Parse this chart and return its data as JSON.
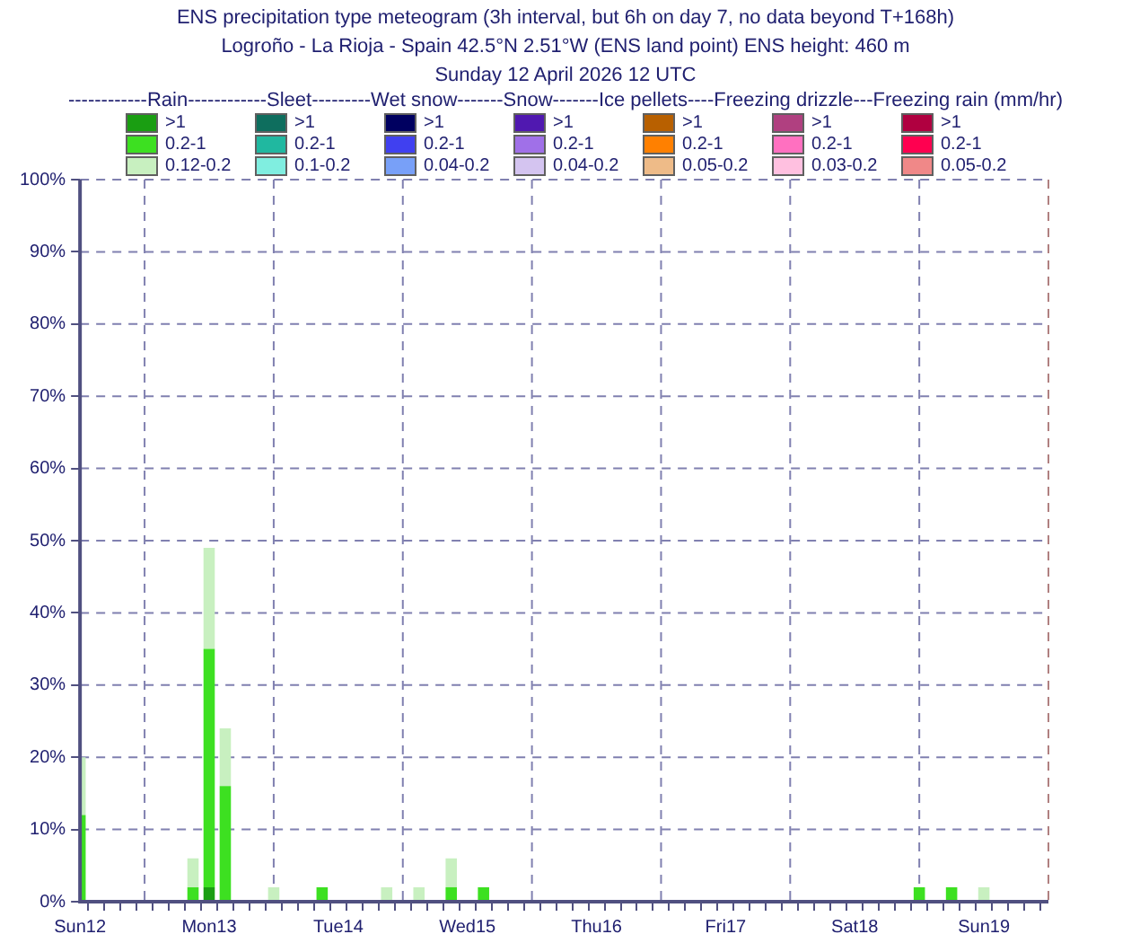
{
  "chart_data": {
    "type": "bar",
    "title": "ENS precipitation type meteogram (3h interval, but 6h on day 7, no data beyond T+168h)",
    "subtitle": "Logroño - La Rioja - Spain 42.5°N 2.51°W (ENS land point) ENS height: 460 m\nSunday 12 April 2026 12 UTC",
    "legend_title": "------------Rain------------Sleet---------Wet snow-------Snow-------Ice pellets----Freezing drizzle---Freezing rain (mm/hr)",
    "stacked": true,
    "legend": "top",
    "grid": true,
    "categories": [
      "Sun12",
      null,
      null,
      null,
      null,
      null,
      null,
      null,
      "Mon13",
      null,
      null,
      null,
      null,
      null,
      null,
      null,
      "Tue14",
      null,
      null,
      null,
      null,
      null,
      null,
      null,
      "Wed15",
      null,
      null,
      null,
      null,
      null,
      null,
      null,
      "Thu16",
      null,
      null,
      null,
      null,
      null,
      null,
      null,
      "Fri17",
      null,
      null,
      null,
      null,
      null,
      null,
      null,
      "Sat18",
      null,
      null,
      null,
      null,
      null,
      null,
      null,
      "Sun19",
      null,
      null,
      null,
      null
    ],
    "ylim": [
      0,
      100
    ],
    "yticks": [
      {
        "value": 0,
        "label": "0%"
      },
      {
        "value": 10,
        "label": "10%"
      },
      {
        "value": 20,
        "label": "20%"
      },
      {
        "value": 30,
        "label": "30%"
      },
      {
        "value": 40,
        "label": "40%"
      },
      {
        "value": 50,
        "label": "50%"
      },
      {
        "value": 60,
        "label": "60%"
      },
      {
        "value": 70,
        "label": "70%"
      },
      {
        "value": 80,
        "label": "80%"
      },
      {
        "value": 90,
        "label": "90%"
      },
      {
        "value": 100,
        "label": "100%"
      }
    ],
    "series": [
      {
        "name": ">1",
        "color": "#1a9e12",
        "values": [
          null,
          null,
          null,
          null,
          null,
          null,
          null,
          null,
          2,
          null,
          null,
          null,
          null,
          null,
          null,
          null,
          null,
          null,
          null,
          null,
          null,
          null,
          null,
          null,
          null,
          null,
          null,
          null,
          null,
          null,
          null,
          null,
          null,
          null,
          null,
          null,
          null,
          null,
          null,
          null,
          null,
          null,
          null,
          null,
          null,
          null,
          null,
          null,
          null,
          null,
          null,
          null,
          null,
          null,
          null,
          null,
          null,
          null,
          null,
          null,
          null
        ]
      },
      {
        "name": "0.2-1",
        "color": "#3de021",
        "values": [
          12,
          null,
          null,
          null,
          null,
          null,
          null,
          2,
          33,
          16,
          null,
          null,
          null,
          null,
          null,
          2,
          null,
          null,
          null,
          null,
          null,
          null,
          null,
          2,
          null,
          2,
          null,
          null,
          null,
          null,
          null,
          null,
          null,
          null,
          null,
          null,
          null,
          null,
          null,
          null,
          null,
          null,
          null,
          null,
          null,
          null,
          null,
          null,
          null,
          null,
          null,
          null,
          2,
          null,
          2,
          null,
          null,
          null,
          null,
          null,
          null
        ]
      },
      {
        "name": "0.12-0.2",
        "color": "#c8f0c0",
        "values": [
          8,
          null,
          null,
          null,
          null,
          null,
          null,
          4,
          14,
          8,
          null,
          null,
          2,
          null,
          null,
          null,
          null,
          null,
          null,
          2,
          null,
          2,
          null,
          4,
          null,
          null,
          null,
          null,
          null,
          null,
          null,
          null,
          null,
          null,
          null,
          null,
          null,
          null,
          null,
          null,
          null,
          null,
          null,
          null,
          null,
          null,
          null,
          null,
          null,
          null,
          null,
          null,
          null,
          null,
          null,
          null,
          2,
          null,
          null,
          null,
          null
        ]
      },
      {
        "name": ">1",
        "color": "#0e6e5e",
        "values": [
          0,
          0,
          0,
          0,
          0,
          0,
          0,
          0,
          0,
          0,
          0,
          0,
          0,
          0,
          0,
          0,
          0,
          0,
          0,
          0,
          0,
          0,
          0,
          0,
          0,
          0,
          0,
          0,
          0,
          0,
          0,
          0,
          0,
          0,
          0,
          0,
          0,
          0,
          0,
          0,
          0,
          0,
          0,
          0,
          0,
          0,
          0,
          0,
          0,
          0,
          0,
          0,
          0,
          0,
          0,
          0,
          0,
          0,
          0,
          0,
          0
        ]
      },
      {
        "name": "0.2-1",
        "color": "#20b8a0",
        "values": [
          0,
          0,
          0,
          0,
          0,
          0,
          0,
          0,
          0,
          0,
          0,
          0,
          0,
          0,
          0,
          0,
          0,
          0,
          0,
          0,
          0,
          0,
          0,
          0,
          0,
          0,
          0,
          0,
          0,
          0,
          0,
          0,
          0,
          0,
          0,
          0,
          0,
          0,
          0,
          0,
          0,
          0,
          0,
          0,
          0,
          0,
          0,
          0,
          0,
          0,
          0,
          0,
          0,
          0,
          0,
          0,
          0,
          0,
          0,
          0,
          0
        ]
      },
      {
        "name": "0.1-0.2",
        "color": "#80eee0",
        "values": [
          0,
          0,
          0,
          0,
          0,
          0,
          0,
          0,
          0,
          0,
          0,
          0,
          0,
          0,
          0,
          0,
          0,
          0,
          0,
          0,
          0,
          0,
          0,
          0,
          0,
          0,
          0,
          0,
          0,
          0,
          0,
          0,
          0,
          0,
          0,
          0,
          0,
          0,
          0,
          0,
          0,
          0,
          0,
          0,
          0,
          0,
          0,
          0,
          0,
          0,
          0,
          0,
          0,
          0,
          0,
          0,
          0,
          0,
          0,
          0,
          0
        ]
      },
      {
        "name": ">1",
        "color": "#000060",
        "values": [
          0,
          0,
          0,
          0,
          0,
          0,
          0,
          0,
          0,
          0,
          0,
          0,
          0,
          0,
          0,
          0,
          0,
          0,
          0,
          0,
          0,
          0,
          0,
          0,
          0,
          0,
          0,
          0,
          0,
          0,
          0,
          0,
          0,
          0,
          0,
          0,
          0,
          0,
          0,
          0,
          0,
          0,
          0,
          0,
          0,
          0,
          0,
          0,
          0,
          0,
          0,
          0,
          0,
          0,
          0,
          0,
          0,
          0,
          0,
          0,
          0
        ]
      },
      {
        "name": "0.2-1",
        "color": "#4040f0",
        "values": [
          0,
          0,
          0,
          0,
          0,
          0,
          0,
          0,
          0,
          0,
          0,
          0,
          0,
          0,
          0,
          0,
          0,
          0,
          0,
          0,
          0,
          0,
          0,
          0,
          0,
          0,
          0,
          0,
          0,
          0,
          0,
          0,
          0,
          0,
          0,
          0,
          0,
          0,
          0,
          0,
          0,
          0,
          0,
          0,
          0,
          0,
          0,
          0,
          0,
          0,
          0,
          0,
          0,
          0,
          0,
          0,
          0,
          0,
          0,
          0,
          0
        ]
      },
      {
        "name": "0.04-0.2",
        "color": "#78a0f8",
        "values": [
          0,
          0,
          0,
          0,
          0,
          0,
          0,
          0,
          0,
          0,
          0,
          0,
          0,
          0,
          0,
          0,
          0,
          0,
          0,
          0,
          0,
          0,
          0,
          0,
          0,
          0,
          0,
          0,
          0,
          0,
          0,
          0,
          0,
          0,
          0,
          0,
          0,
          0,
          0,
          0,
          0,
          0,
          0,
          0,
          0,
          0,
          0,
          0,
          0,
          0,
          0,
          0,
          0,
          0,
          0,
          0,
          0,
          0,
          0,
          0,
          0
        ]
      },
      {
        "name": ">1",
        "color": "#5018b0",
        "values": [
          0,
          0,
          0,
          0,
          0,
          0,
          0,
          0,
          0,
          0,
          0,
          0,
          0,
          0,
          0,
          0,
          0,
          0,
          0,
          0,
          0,
          0,
          0,
          0,
          0,
          0,
          0,
          0,
          0,
          0,
          0,
          0,
          0,
          0,
          0,
          0,
          0,
          0,
          0,
          0,
          0,
          0,
          0,
          0,
          0,
          0,
          0,
          0,
          0,
          0,
          0,
          0,
          0,
          0,
          0,
          0,
          0,
          0,
          0,
          0,
          0
        ]
      },
      {
        "name": "0.2-1",
        "color": "#a070e8",
        "values": [
          0,
          0,
          0,
          0,
          0,
          0,
          0,
          0,
          0,
          0,
          0,
          0,
          0,
          0,
          0,
          0,
          0,
          0,
          0,
          0,
          0,
          0,
          0,
          0,
          0,
          0,
          0,
          0,
          0,
          0,
          0,
          0,
          0,
          0,
          0,
          0,
          0,
          0,
          0,
          0,
          0,
          0,
          0,
          0,
          0,
          0,
          0,
          0,
          0,
          0,
          0,
          0,
          0,
          0,
          0,
          0,
          0,
          0,
          0,
          0,
          0
        ]
      },
      {
        "name": "0.04-0.2",
        "color": "#d4c4f0",
        "values": [
          0,
          0,
          0,
          0,
          0,
          0,
          0,
          0,
          0,
          0,
          0,
          0,
          0,
          0,
          0,
          0,
          0,
          0,
          0,
          0,
          0,
          0,
          0,
          0,
          0,
          0,
          0,
          0,
          0,
          0,
          0,
          0,
          0,
          0,
          0,
          0,
          0,
          0,
          0,
          0,
          0,
          0,
          0,
          0,
          0,
          0,
          0,
          0,
          0,
          0,
          0,
          0,
          0,
          0,
          0,
          0,
          0,
          0,
          0,
          0,
          0
        ]
      },
      {
        "name": ">1",
        "color": "#b86000",
        "values": [
          0,
          0,
          0,
          0,
          0,
          0,
          0,
          0,
          0,
          0,
          0,
          0,
          0,
          0,
          0,
          0,
          0,
          0,
          0,
          0,
          0,
          0,
          0,
          0,
          0,
          0,
          0,
          0,
          0,
          0,
          0,
          0,
          0,
          0,
          0,
          0,
          0,
          0,
          0,
          0,
          0,
          0,
          0,
          0,
          0,
          0,
          0,
          0,
          0,
          0,
          0,
          0,
          0,
          0,
          0,
          0,
          0,
          0,
          0,
          0,
          0
        ]
      },
      {
        "name": "0.2-1",
        "color": "#ff8000",
        "values": [
          0,
          0,
          0,
          0,
          0,
          0,
          0,
          0,
          0,
          0,
          0,
          0,
          0,
          0,
          0,
          0,
          0,
          0,
          0,
          0,
          0,
          0,
          0,
          0,
          0,
          0,
          0,
          0,
          0,
          0,
          0,
          0,
          0,
          0,
          0,
          0,
          0,
          0,
          0,
          0,
          0,
          0,
          0,
          0,
          0,
          0,
          0,
          0,
          0,
          0,
          0,
          0,
          0,
          0,
          0,
          0,
          0,
          0,
          0,
          0,
          0
        ]
      },
      {
        "name": "0.05-0.2",
        "color": "#eebb88",
        "values": [
          0,
          0,
          0,
          0,
          0,
          0,
          0,
          0,
          0,
          0,
          0,
          0,
          0,
          0,
          0,
          0,
          0,
          0,
          0,
          0,
          0,
          0,
          0,
          0,
          0,
          0,
          0,
          0,
          0,
          0,
          0,
          0,
          0,
          0,
          0,
          0,
          0,
          0,
          0,
          0,
          0,
          0,
          0,
          0,
          0,
          0,
          0,
          0,
          0,
          0,
          0,
          0,
          0,
          0,
          0,
          0,
          0,
          0,
          0,
          0,
          0
        ]
      },
      {
        "name": ">1",
        "color": "#b04080",
        "values": [
          0,
          0,
          0,
          0,
          0,
          0,
          0,
          0,
          0,
          0,
          0,
          0,
          0,
          0,
          0,
          0,
          0,
          0,
          0,
          0,
          0,
          0,
          0,
          0,
          0,
          0,
          0,
          0,
          0,
          0,
          0,
          0,
          0,
          0,
          0,
          0,
          0,
          0,
          0,
          0,
          0,
          0,
          0,
          0,
          0,
          0,
          0,
          0,
          0,
          0,
          0,
          0,
          0,
          0,
          0,
          0,
          0,
          0,
          0,
          0,
          0
        ]
      },
      {
        "name": "0.2-1",
        "color": "#ff70c0",
        "values": [
          0,
          0,
          0,
          0,
          0,
          0,
          0,
          0,
          0,
          0,
          0,
          0,
          0,
          0,
          0,
          0,
          0,
          0,
          0,
          0,
          0,
          0,
          0,
          0,
          0,
          0,
          0,
          0,
          0,
          0,
          0,
          0,
          0,
          0,
          0,
          0,
          0,
          0,
          0,
          0,
          0,
          0,
          0,
          0,
          0,
          0,
          0,
          0,
          0,
          0,
          0,
          0,
          0,
          0,
          0,
          0,
          0,
          0,
          0,
          0,
          0
        ]
      },
      {
        "name": "0.03-0.2",
        "color": "#ffc0e0",
        "values": [
          0,
          0,
          0,
          0,
          0,
          0,
          0,
          0,
          0,
          0,
          0,
          0,
          0,
          0,
          0,
          0,
          0,
          0,
          0,
          0,
          0,
          0,
          0,
          0,
          0,
          0,
          0,
          0,
          0,
          0,
          0,
          0,
          0,
          0,
          0,
          0,
          0,
          0,
          0,
          0,
          0,
          0,
          0,
          0,
          0,
          0,
          0,
          0,
          0,
          0,
          0,
          0,
          0,
          0,
          0,
          0,
          0,
          0,
          0,
          0,
          0
        ]
      },
      {
        "name": ">1",
        "color": "#b00040",
        "values": [
          0,
          0,
          0,
          0,
          0,
          0,
          0,
          0,
          0,
          0,
          0,
          0,
          0,
          0,
          0,
          0,
          0,
          0,
          0,
          0,
          0,
          0,
          0,
          0,
          0,
          0,
          0,
          0,
          0,
          0,
          0,
          0,
          0,
          0,
          0,
          0,
          0,
          0,
          0,
          0,
          0,
          0,
          0,
          0,
          0,
          0,
          0,
          0,
          0,
          0,
          0,
          0,
          0,
          0,
          0,
          0,
          0,
          0,
          0,
          0,
          0
        ]
      },
      {
        "name": "0.2-1",
        "color": "#ff0050",
        "values": [
          0,
          0,
          0,
          0,
          0,
          0,
          0,
          0,
          0,
          0,
          0,
          0,
          0,
          0,
          0,
          0,
          0,
          0,
          0,
          0,
          0,
          0,
          0,
          0,
          0,
          0,
          0,
          0,
          0,
          0,
          0,
          0,
          0,
          0,
          0,
          0,
          0,
          0,
          0,
          0,
          0,
          0,
          0,
          0,
          0,
          0,
          0,
          0,
          0,
          0,
          0,
          0,
          0,
          0,
          0,
          0,
          0,
          0,
          0,
          0,
          0
        ]
      },
      {
        "name": "0.05-0.2",
        "color": "#f08888",
        "values": [
          0,
          0,
          0,
          0,
          0,
          0,
          0,
          0,
          0,
          0,
          0,
          0,
          0,
          0,
          0,
          0,
          0,
          0,
          0,
          0,
          0,
          0,
          0,
          0,
          0,
          0,
          0,
          0,
          0,
          0,
          0,
          0,
          0,
          0,
          0,
          0,
          0,
          0,
          0,
          0,
          0,
          0,
          0,
          0,
          0,
          0,
          0,
          0,
          0,
          0,
          0,
          0,
          0,
          0,
          0,
          0,
          0,
          0,
          0,
          0,
          0
        ]
      }
    ]
  }
}
